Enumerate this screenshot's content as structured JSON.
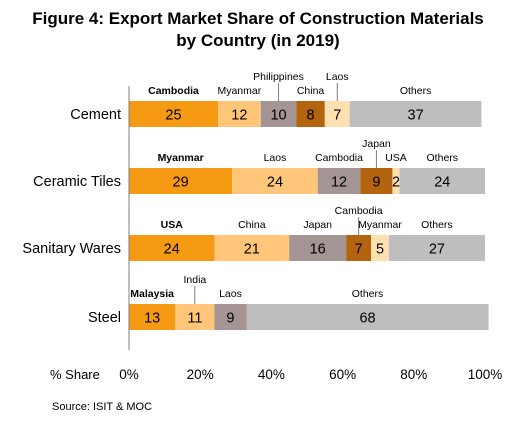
{
  "chart_data": {
    "type": "bar",
    "stacked": true,
    "orientation": "horizontal",
    "title_line1": "Figure 4: Export Market Share of Construction Materials",
    "title_line2": "by Country (in 2019)",
    "xlabel": "% Share",
    "xlim": [
      0,
      100
    ],
    "x_ticks": [
      "0%",
      "20%",
      "40%",
      "60%",
      "80%",
      "100%"
    ],
    "source": "Source: ISIT & MOC",
    "grid": false,
    "categories": [
      "Cement",
      "Ceramic Tiles",
      "Sanitary Wares",
      "Steel"
    ],
    "rows": [
      {
        "category": "Cement",
        "segments": [
          {
            "label": "Cambodia",
            "value": 25,
            "color": "#F79A13",
            "bold_label": true
          },
          {
            "label": "Myanmar",
            "value": 12,
            "color": "#FFC67A"
          },
          {
            "label": "Philippines",
            "value": 10,
            "color": "#A49494"
          },
          {
            "label": "China",
            "value": 8,
            "color": "#B4640E"
          },
          {
            "label": "Laos",
            "value": 7,
            "color": "#FFE0B0"
          },
          {
            "label": "Others",
            "value": 37,
            "color": "#BEBEBE"
          }
        ]
      },
      {
        "category": "Ceramic Tiles",
        "segments": [
          {
            "label": "Myanmar",
            "value": 29,
            "color": "#F79A13",
            "bold_label": true
          },
          {
            "label": "Laos",
            "value": 24,
            "color": "#FFC67A"
          },
          {
            "label": "Cambodia",
            "value": 12,
            "color": "#A49494"
          },
          {
            "label": "Japan",
            "value": 9,
            "color": "#B4640E"
          },
          {
            "label": "USA",
            "value": 2,
            "color": "#FFE0B0"
          },
          {
            "label": "Others",
            "value": 24,
            "color": "#BEBEBE"
          }
        ]
      },
      {
        "category": "Sanitary Wares",
        "segments": [
          {
            "label": "USA",
            "value": 24,
            "color": "#F79A13",
            "bold_label": true
          },
          {
            "label": "China",
            "value": 21,
            "color": "#FFC67A"
          },
          {
            "label": "Japan",
            "value": 16,
            "color": "#A49494"
          },
          {
            "label": "Cambodia",
            "value": 7,
            "color": "#B4640E"
          },
          {
            "label": "Myanmar",
            "value": 5,
            "color": "#FFE0B0"
          },
          {
            "label": "Others",
            "value": 27,
            "color": "#BEBEBE"
          }
        ]
      },
      {
        "category": "Steel",
        "segments": [
          {
            "label": "Malaysia",
            "value": 13,
            "color": "#F79A13",
            "bold_label": true
          },
          {
            "label": "India",
            "value": 11,
            "color": "#FFC67A"
          },
          {
            "label": "Laos",
            "value": 9,
            "color": "#A49494"
          },
          {
            "label": "Others",
            "value": 68,
            "color": "#BEBEBE"
          }
        ]
      }
    ]
  }
}
